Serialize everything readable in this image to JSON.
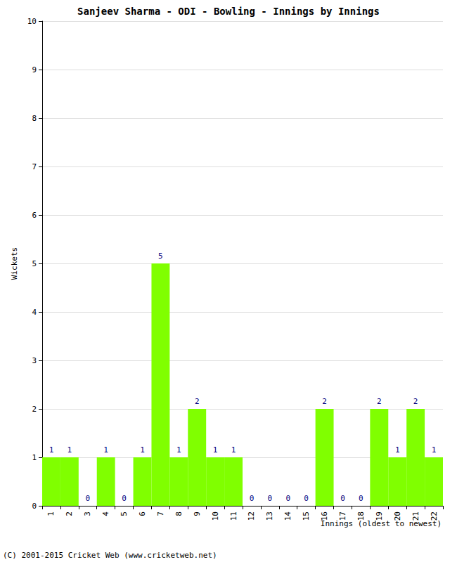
{
  "chart_data": {
    "type": "bar",
    "title": "Sanjeev Sharma - ODI - Bowling - Innings by Innings",
    "x_label": "Innings (oldest to newest)",
    "y_label": "Wickets",
    "categories": [
      "1",
      "2",
      "3",
      "4",
      "5",
      "6",
      "7",
      "8",
      "9",
      "10",
      "11",
      "12",
      "13",
      "14",
      "15",
      "16",
      "17",
      "18",
      "19",
      "20",
      "21",
      "22"
    ],
    "values": [
      1,
      1,
      0,
      1,
      0,
      1,
      5,
      1,
      2,
      1,
      1,
      0,
      0,
      0,
      0,
      2,
      0,
      0,
      2,
      1,
      2,
      1
    ],
    "color": "#80ff00",
    "ylim": [
      0,
      10
    ],
    "yticks": [
      0,
      1,
      2,
      3,
      4,
      5,
      6,
      7,
      8,
      9,
      10
    ],
    "grid": true,
    "data_labels": true,
    "annotations": [
      "(C) 2001-2015 Cricket Web (www.cricketweb.net)"
    ]
  }
}
